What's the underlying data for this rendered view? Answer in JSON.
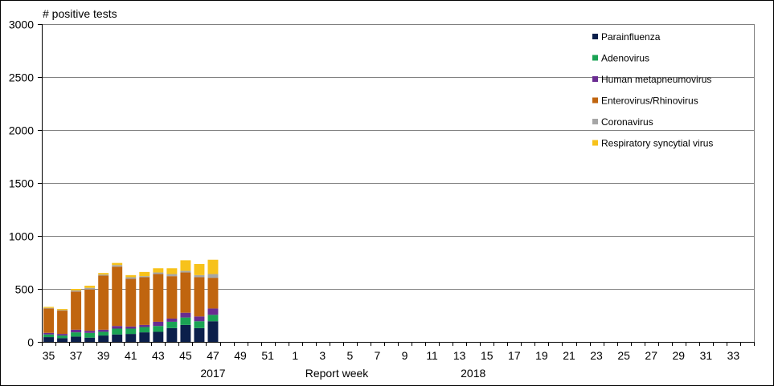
{
  "chart_data": {
    "type": "bar",
    "stacked": true,
    "ylabel": "# positive tests",
    "xlabel": "Report  week",
    "ylim": [
      0,
      3000
    ],
    "yticks": [
      0,
      500,
      1000,
      1500,
      2000,
      2500,
      3000
    ],
    "grid": true,
    "legend_position": "top-right",
    "weeks": [
      35,
      36,
      37,
      38,
      39,
      40,
      41,
      42,
      43,
      44,
      45,
      46,
      47,
      48,
      49,
      50,
      51,
      52,
      1,
      2,
      3,
      4,
      5,
      6,
      7,
      8,
      9,
      10,
      11,
      12,
      13,
      14,
      15,
      16,
      17,
      18,
      19,
      20,
      21,
      22,
      23,
      24,
      25,
      26,
      27,
      28,
      29,
      30,
      31,
      32,
      33,
      34
    ],
    "xtick_labels": [
      "35",
      "37",
      "39",
      "41",
      "43",
      "45",
      "47",
      "49",
      "51",
      "1",
      "3",
      "5",
      "7",
      "9",
      "11",
      "13",
      "15",
      "17",
      "19",
      "21",
      "23",
      "25",
      "27",
      "29",
      "31",
      "33"
    ],
    "year_labels": [
      {
        "label": "2017",
        "week_index": 12
      },
      {
        "label": "2018",
        "week_index": 31
      }
    ],
    "series": [
      {
        "name": "Parainfluenza",
        "color": "#0b1f4b",
        "values": [
          45,
          35,
          50,
          40,
          60,
          70,
          75,
          90,
          95,
          130,
          160,
          130,
          195
        ]
      },
      {
        "name": "Adenovirus",
        "color": "#1aa354",
        "values": [
          25,
          25,
          40,
          45,
          35,
          55,
          50,
          50,
          55,
          60,
          70,
          65,
          60
        ]
      },
      {
        "name": "Human metapneumovirus",
        "color": "#6a2c91",
        "values": [
          15,
          15,
          25,
          20,
          20,
          25,
          20,
          20,
          40,
          30,
          45,
          45,
          60
        ]
      },
      {
        "name": "Enterovirus/Rhinovirus",
        "color": "#c0650f",
        "values": [
          230,
          220,
          360,
          390,
          510,
          560,
          450,
          450,
          450,
          400,
          380,
          370,
          290
        ]
      },
      {
        "name": "Coronavirus",
        "color": "#a6a6a6",
        "values": [
          5,
          5,
          10,
          15,
          10,
          15,
          15,
          10,
          15,
          20,
          15,
          20,
          35
        ]
      },
      {
        "name": "Respiratory syncytial virus",
        "color": "#f7c21b",
        "values": [
          10,
          10,
          15,
          20,
          15,
          20,
          20,
          40,
          40,
          55,
          100,
          105,
          135
        ]
      }
    ]
  }
}
